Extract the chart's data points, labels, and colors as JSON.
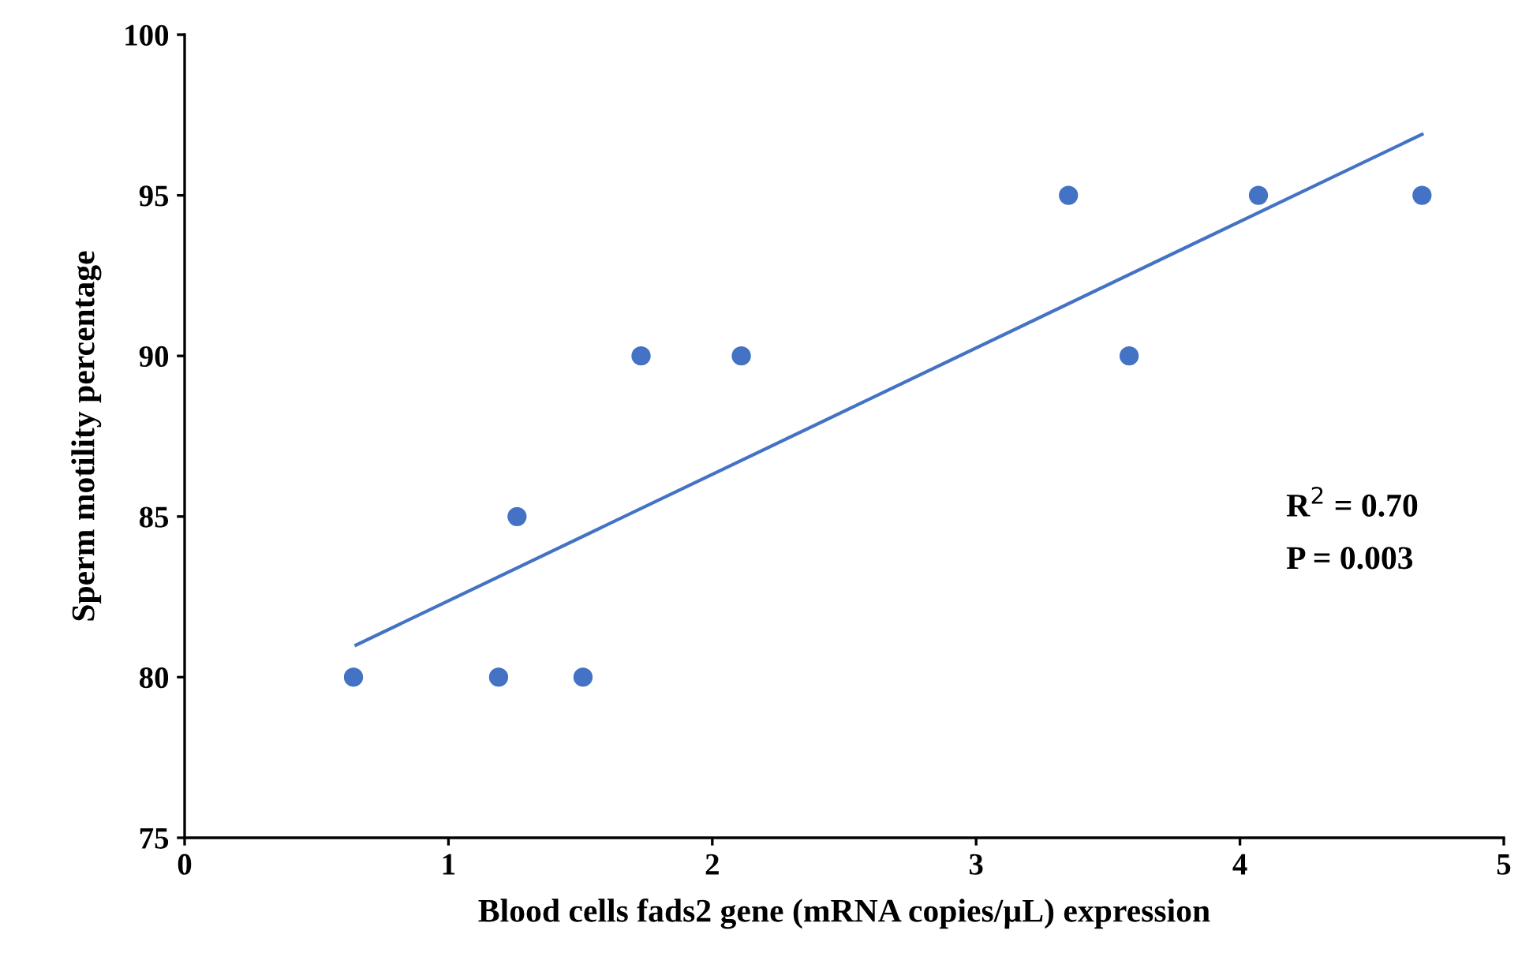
{
  "chart_data": {
    "type": "scatter",
    "xlabel": "Blood cells fads2 gene (mRNA copies/µL) expression",
    "ylabel": "Sperm motility percentage",
    "series": [
      {
        "color": "#4472c4",
        "marker": "circle",
        "x": [
          0.64,
          1.19,
          1.51,
          1.26,
          1.73,
          2.11,
          3.35,
          3.58,
          4.07,
          4.69
        ],
        "values": [
          80,
          80,
          80,
          85,
          90,
          90,
          95,
          90,
          95,
          95
        ]
      },
      {
        "type": "line",
        "marker": "none",
        "color": "#4472c4",
        "x": [
          0.65,
          4.69
        ],
        "values": [
          81.0,
          96.9
        ]
      }
    ],
    "xlim": [
      0,
      5
    ],
    "xticks": [
      0,
      1,
      2,
      3,
      4,
      5
    ],
    "ylim": [
      75,
      100
    ],
    "yticks": [
      75,
      80,
      85,
      90,
      95,
      100
    ],
    "annotations": [
      {
        "text": "R$^{2}$ = 0.70"
      },
      {
        "text": "P = 0.003"
      }
    ],
    "grid": false,
    "legend": false
  }
}
